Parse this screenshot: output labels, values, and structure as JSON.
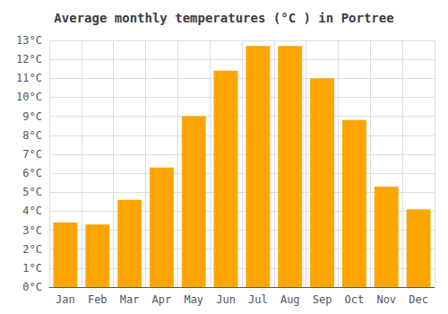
{
  "chart_data": {
    "type": "bar",
    "title": "Average monthly temperatures (°C ) in Portree",
    "categories": [
      "Jan",
      "Feb",
      "Mar",
      "Apr",
      "May",
      "Jun",
      "Jul",
      "Aug",
      "Sep",
      "Oct",
      "Nov",
      "Dec"
    ],
    "values": [
      3.4,
      3.3,
      4.6,
      6.3,
      9.0,
      11.4,
      12.7,
      12.7,
      11.0,
      8.8,
      5.3,
      4.1
    ],
    "color": "#FFA500",
    "ylim": [
      0,
      13
    ],
    "yticks": [
      {
        "value": 0,
        "label": "0°C"
      },
      {
        "value": 1,
        "label": "1°C"
      },
      {
        "value": 2,
        "label": "2°C"
      },
      {
        "value": 3,
        "label": "3°C"
      },
      {
        "value": 4,
        "label": "4°C"
      },
      {
        "value": 5,
        "label": "5°C"
      },
      {
        "value": 6,
        "label": "6°C"
      },
      {
        "value": 7,
        "label": "7°C"
      },
      {
        "value": 8,
        "label": "8°C"
      },
      {
        "value": 9,
        "label": "9°C"
      },
      {
        "value": 10,
        "label": "10°C"
      },
      {
        "value": 11,
        "label": "11°C"
      },
      {
        "value": 12,
        "label": "12°C"
      },
      {
        "value": 13,
        "label": "13°C"
      }
    ],
    "grid": true
  }
}
